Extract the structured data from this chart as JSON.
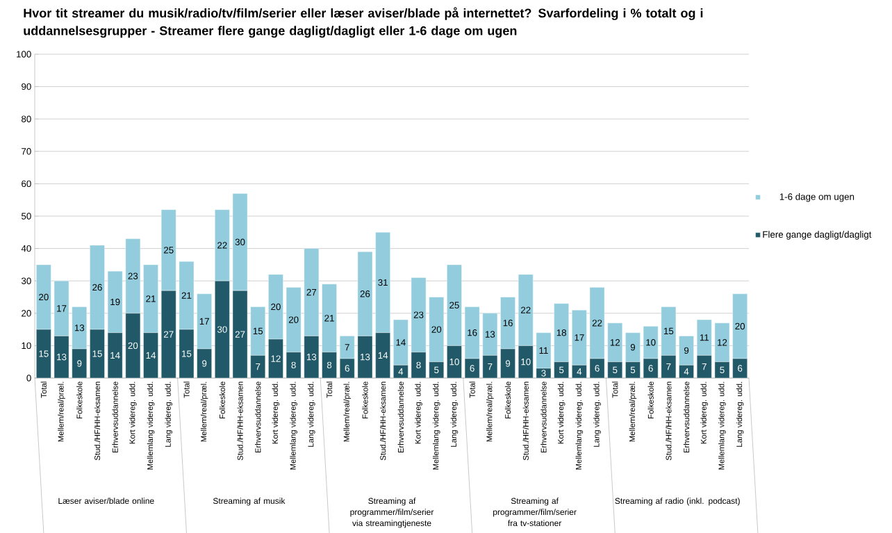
{
  "chart_data": {
    "type": "bar",
    "stacked": true,
    "title": "Hvor tit streamer du musik/radio/tv/film/serier eller læser aviser/blade på internettet? Svarfordeling i % totalt og i uddannelsesgrupper - Streamer flere gange dagligt/dagligt eller 1-6 dage om ugen",
    "categories": [
      "Total",
      "Mellem/real/præl.",
      "Folkeskole",
      "Stud./HF/HH-eksamen",
      "Erhvervsuddannelse",
      "Kort videreg. udd.",
      "Mellemlang videreg. udd.",
      "Lang videreg. udd.",
      "Total",
      "Mellem/real/præl.",
      "Folkeskole",
      "Stud./HF/HH-eksamen",
      "Erhvervsuddannelse",
      "Kort videreg. udd.",
      "Mellemlang videreg. udd.",
      "Lang videreg. udd.",
      "Total",
      "Mellem/real/præl.",
      "Folkeskole",
      "Stud./HF/HH-eksamen",
      "Erhvervsuddannelse",
      "Kort videreg. udd.",
      "Mellemlang videreg. udd.",
      "Lang videreg. udd.",
      "Total",
      "Mellem/real/præl.",
      "Folkeskole",
      "Stud./HF/HH-eksamen",
      "Erhvervsuddannelse",
      "Kort videreg. udd.",
      "Mellemlang videreg. udd.",
      "Lang videreg. udd.",
      "Total",
      "Mellem/real/præl.",
      "Folkeskole",
      "Stud./HF/HH-eksamen",
      "Erhvervsuddannelse",
      "Kort videreg. udd.",
      "Mellemlang videreg. udd.",
      "Lang videreg. udd."
    ],
    "series": [
      {
        "name": "Flere gange dagligt/dagligt",
        "color": "#215968",
        "values": [
          15,
          13,
          9,
          15,
          14,
          20,
          14,
          27,
          15,
          9,
          30,
          27,
          7,
          12,
          8,
          13,
          8,
          6,
          13,
          14,
          4,
          8,
          5,
          10,
          6,
          7,
          9,
          10,
          3,
          5,
          4,
          6,
          5,
          5,
          6,
          7,
          4,
          7,
          5,
          6
        ]
      },
      {
        "name": "1-6 dage om ugen",
        "color": "#93cddd",
        "values": [
          20,
          17,
          13,
          26,
          19,
          23,
          21,
          25,
          21,
          17,
          22,
          30,
          15,
          20,
          20,
          27,
          21,
          7,
          26,
          31,
          14,
          23,
          20,
          25,
          16,
          13,
          16,
          22,
          11,
          18,
          17,
          22,
          12,
          9,
          10,
          15,
          9,
          11,
          12,
          20
        ]
      }
    ],
    "annotations": [
      "Læser aviser/blade online",
      "Streaming af musik",
      "Streaming af programmer/film/serier via streamingtjeneste",
      "Streaming af programmer/film/serier fra tv-stationer",
      "Streaming af radio (inkl. podcast)"
    ],
    "ylim": [
      0,
      100
    ],
    "yticks": [
      0,
      10,
      20,
      30,
      40,
      50,
      60,
      70,
      80,
      90,
      100
    ],
    "grid": "y",
    "legend": "right",
    "data_labels": true
  }
}
